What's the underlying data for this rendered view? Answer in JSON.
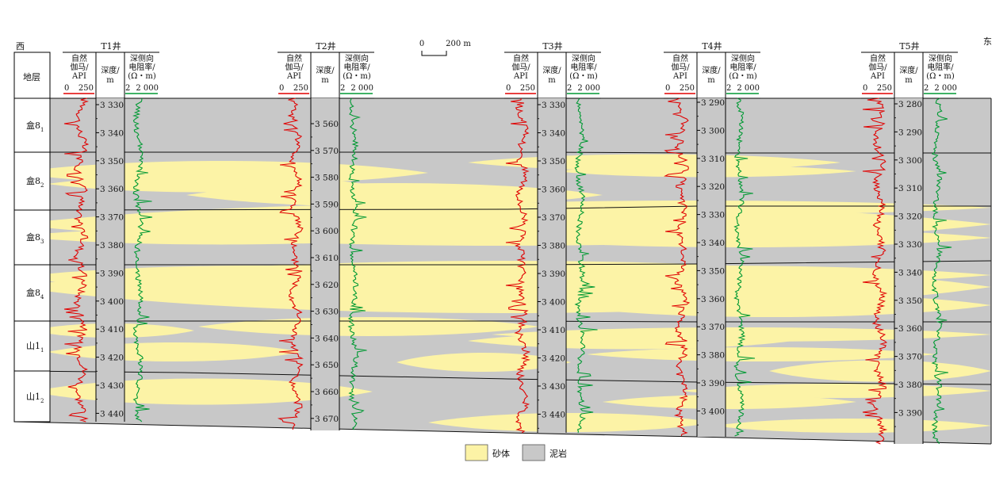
{
  "direction": {
    "west": "西",
    "east": "东"
  },
  "layer_header": "地层",
  "scale_bar": {
    "zero": "0",
    "label": "200 m"
  },
  "legend": [
    {
      "label": "砂体",
      "color": "#fcf3a6"
    },
    {
      "label": "泥岩",
      "color": "#c8c8c8"
    }
  ],
  "log_headers": {
    "gr": [
      "自然",
      "伽马/",
      "API"
    ],
    "gr_scale": {
      "min": "0",
      "max": "250",
      "color": "#e00000"
    },
    "depth": [
      "深度/",
      "m"
    ],
    "res": [
      "深侧向",
      "电阻率/",
      "(Ω・m)"
    ],
    "res_scale": {
      "min": "2",
      "max": "2 000",
      "color": "#009933"
    }
  },
  "layers": [
    {
      "name": "盒8",
      "sub": "1"
    },
    {
      "name": "盒8",
      "sub": "2"
    },
    {
      "name": "盒8",
      "sub": "3"
    },
    {
      "name": "盒8",
      "sub": "4"
    },
    {
      "name": "山1",
      "sub": "1"
    },
    {
      "name": "山1",
      "sub": "2"
    }
  ],
  "wells": [
    {
      "name": "T1井",
      "depths": [
        "3 330",
        "3 340",
        "3 350",
        "3 360",
        "3 370",
        "3 380",
        "3 390",
        "3 400",
        "3 410",
        "3 420",
        "3 430",
        "3 440"
      ]
    },
    {
      "name": "T2井",
      "depths": [
        "3 560",
        "3 570",
        "3 580",
        "3 590",
        "3 600",
        "3 610",
        "3 620",
        "3 630",
        "3 640",
        "3 650",
        "3 660",
        "3 670"
      ]
    },
    {
      "name": "T3井",
      "depths": [
        "3 330",
        "3 340",
        "3 350",
        "3 360",
        "3 370",
        "3 380",
        "3 390",
        "3 400",
        "3 410",
        "3 420",
        "3 430",
        "3 440"
      ]
    },
    {
      "name": "T4井",
      "depths": [
        "3 290",
        "3 300",
        "3 310",
        "3 320",
        "3 330",
        "3 340",
        "3 350",
        "3 360",
        "3 370",
        "3 380",
        "3 390",
        "3 400"
      ]
    },
    {
      "name": "T5井",
      "depths": [
        "3 280",
        "3 290",
        "3 300",
        "3 310",
        "3 320",
        "3 330",
        "3 340",
        "3 350",
        "3 360",
        "3 370",
        "3 380",
        "3 390"
      ]
    }
  ]
}
